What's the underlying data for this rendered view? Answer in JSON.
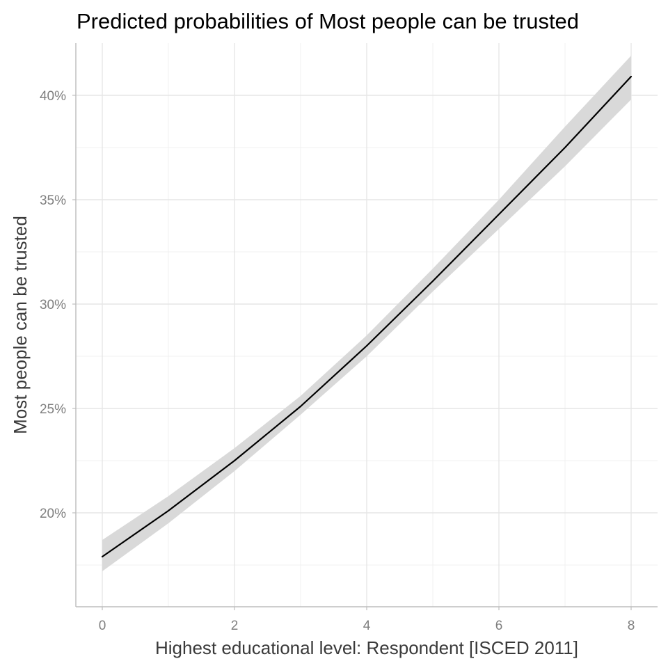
{
  "chart_data": {
    "type": "line",
    "title": "Predicted probabilities of Most people can be trusted",
    "xlabel": "Highest educational level: Respondent [ISCED 2011]",
    "ylabel": "Most people can be trusted",
    "xlim": [
      -0.4,
      8.4
    ],
    "ylim": [
      0.155,
      0.425
    ],
    "x_ticks": [
      0,
      2,
      4,
      6,
      8
    ],
    "x_tick_labels": [
      "0",
      "2",
      "4",
      "6",
      "8"
    ],
    "y_ticks": [
      0.2,
      0.25,
      0.3,
      0.35,
      0.4
    ],
    "y_tick_labels": [
      "20%",
      "25%",
      "30%",
      "35%",
      "40%"
    ],
    "grid": true,
    "legend": "none",
    "line_color": "#000000",
    "band_color": "#d9d9d9",
    "series": [
      {
        "x": [
          0,
          1,
          2,
          3,
          4,
          5,
          6,
          7,
          8
        ],
        "y": [
          0.179,
          0.201,
          0.225,
          0.251,
          0.28,
          0.311,
          0.343,
          0.375,
          0.409
        ],
        "ci_low": [
          0.172,
          0.195,
          0.22,
          0.247,
          0.275,
          0.306,
          0.336,
          0.366,
          0.398
        ],
        "ci_high": [
          0.187,
          0.208,
          0.231,
          0.256,
          0.285,
          0.317,
          0.35,
          0.385,
          0.419
        ]
      }
    ]
  }
}
